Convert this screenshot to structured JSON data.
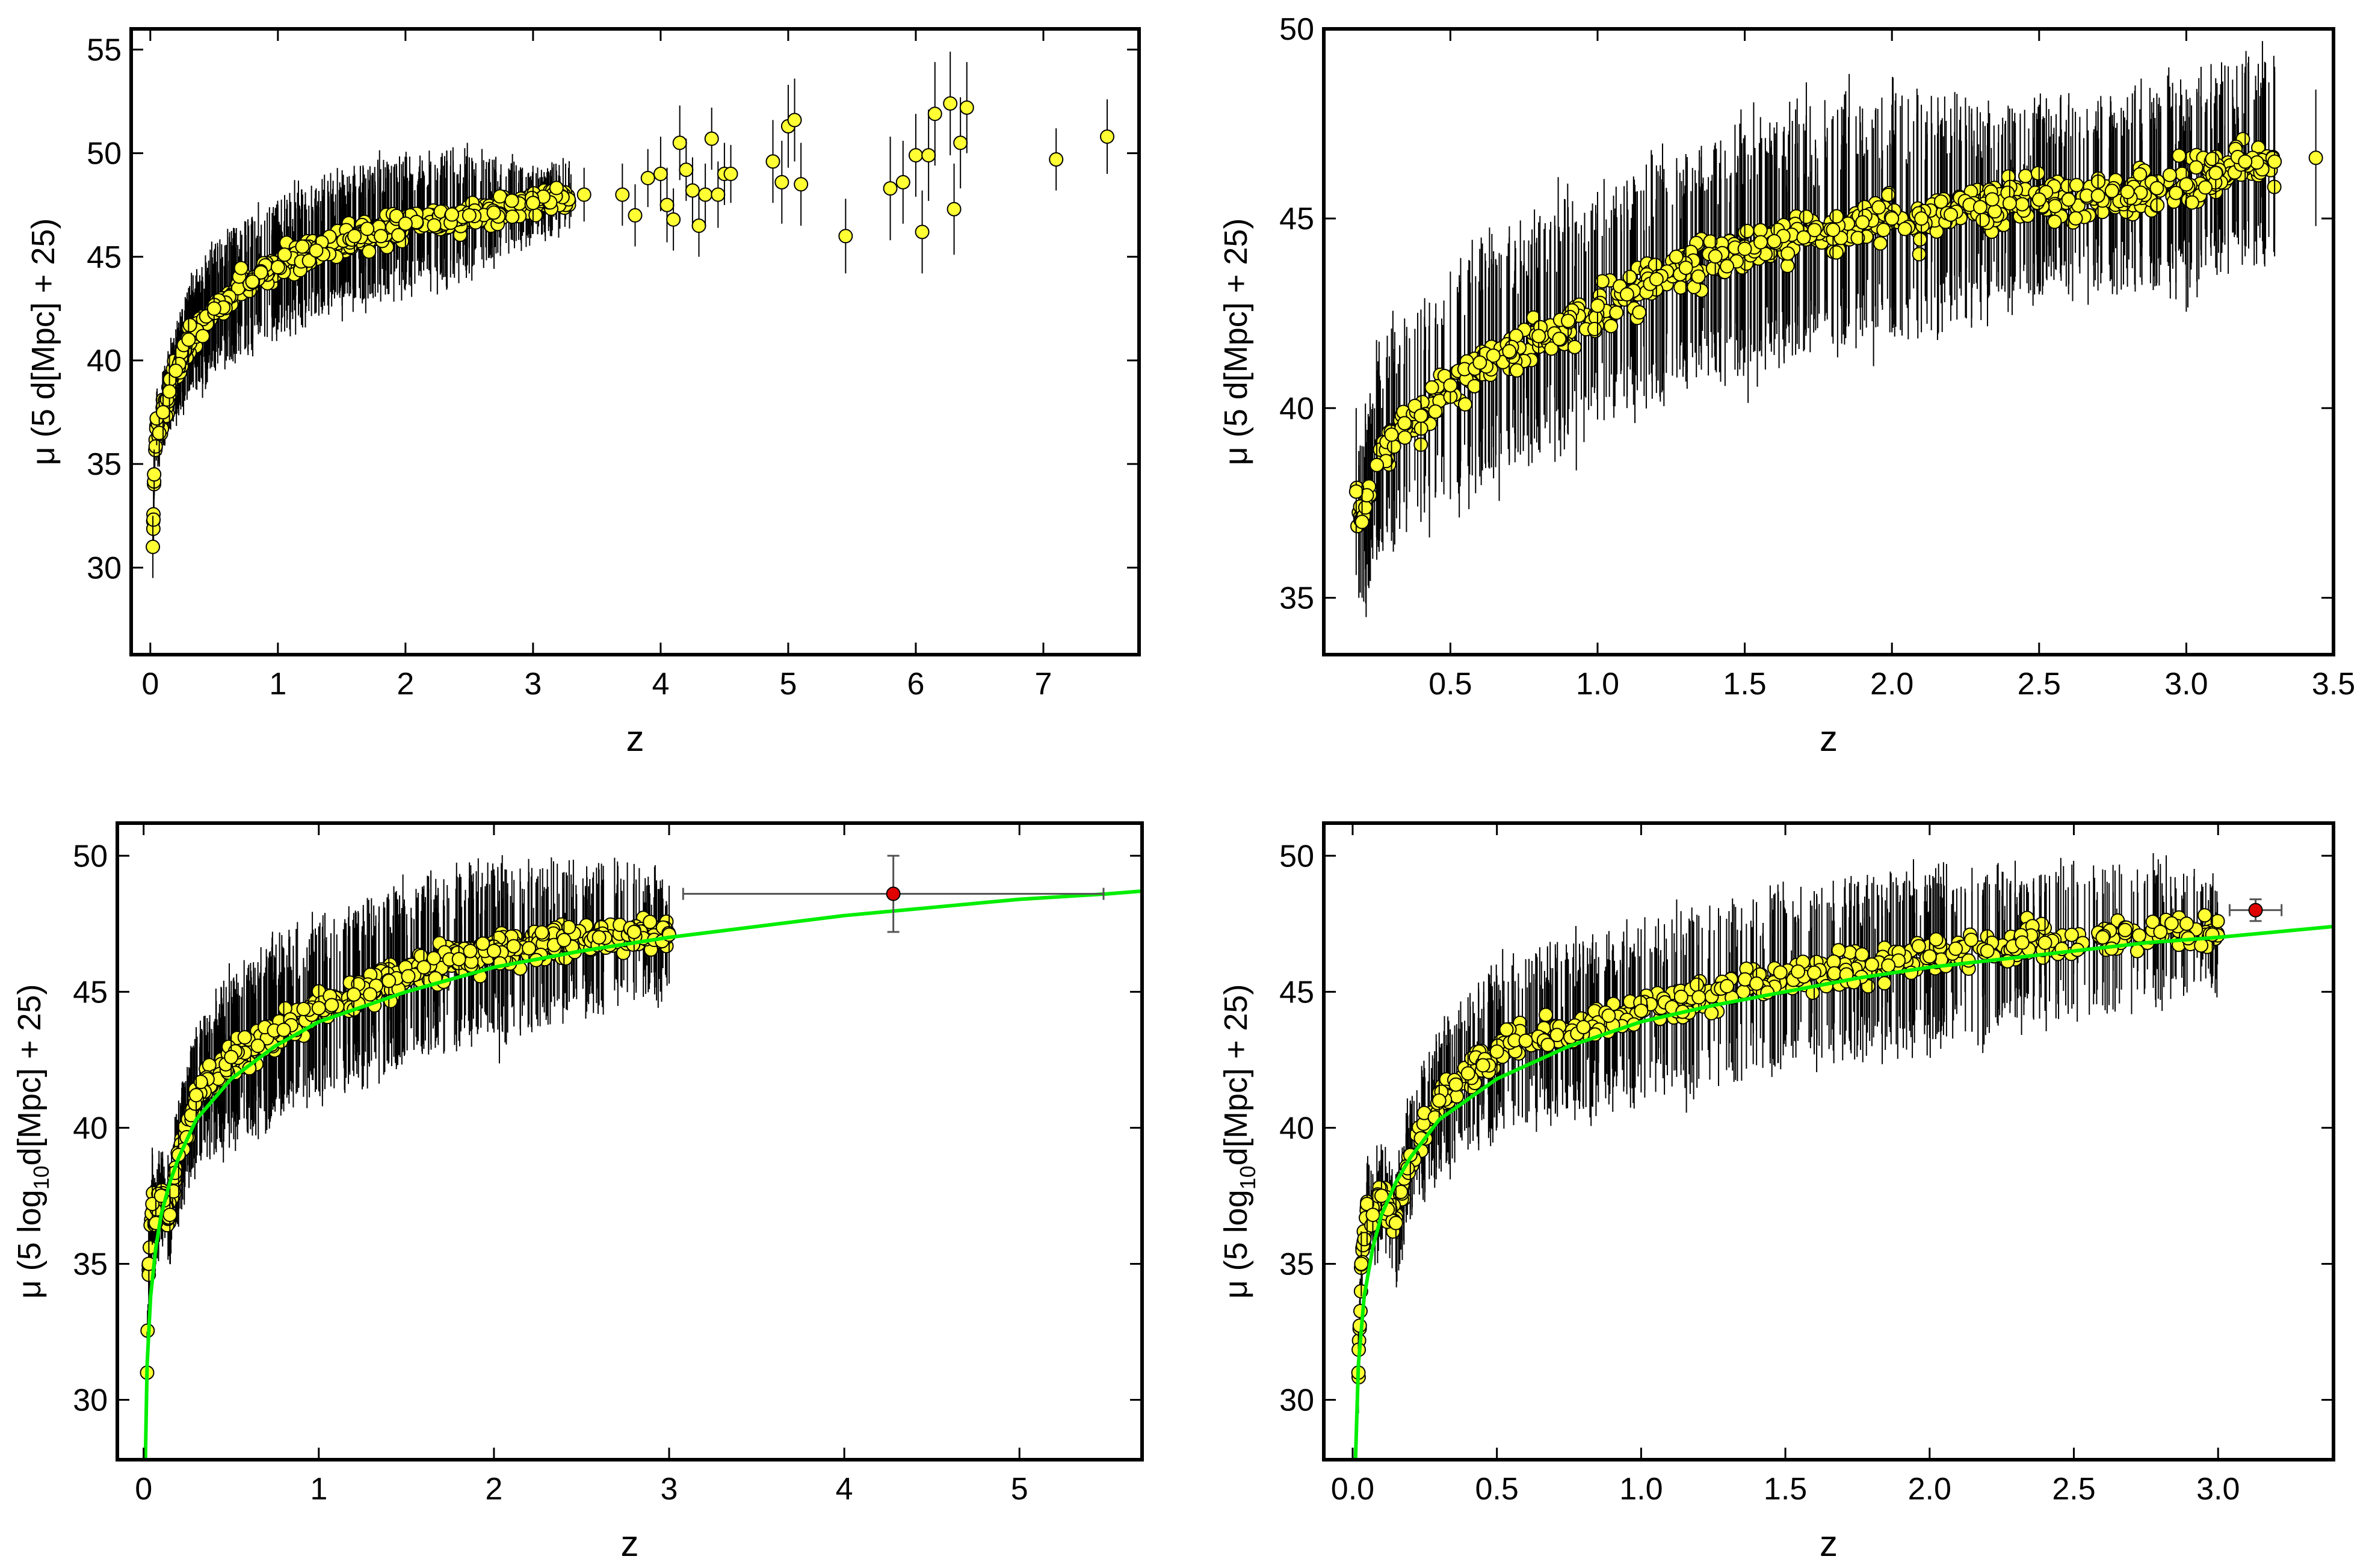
{
  "chart_data": [
    {
      "type": "scatter",
      "xlabel": "z",
      "ylabel": "μ (5 d[Mpc] + 25)",
      "xlim": [
        -0.15,
        7.75
      ],
      "ylim": [
        25.8,
        56.0
      ],
      "xticks": [
        0,
        1,
        2,
        3,
        4,
        5,
        6,
        7
      ],
      "yticks": [
        30,
        35,
        40,
        45,
        50,
        55
      ],
      "xtick_decimals": 0,
      "point_color": "#ffff33",
      "points": [
        [
          0.02,
          31.0,
          1.5
        ],
        [
          0.03,
          34.5,
          1.2
        ],
        [
          0.05,
          37.2,
          1.3
        ],
        [
          0.07,
          36.5,
          1.5
        ],
        [
          0.1,
          37.5,
          1.6
        ],
        [
          0.15,
          38.5,
          1.8
        ],
        [
          0.2,
          39.5,
          2.0
        ],
        [
          0.3,
          41.0,
          2.5
        ],
        [
          0.5,
          42.5,
          2.8
        ],
        [
          0.8,
          43.8,
          3.0
        ],
        [
          1.0,
          44.5,
          3.0
        ],
        [
          1.3,
          45.3,
          3.0
        ],
        [
          1.6,
          46.0,
          3.0
        ],
        [
          2.0,
          46.6,
          3.0
        ],
        [
          2.5,
          47.0,
          2.8
        ],
        [
          3.0,
          47.6,
          1.5
        ],
        [
          3.4,
          48.0,
          1.3
        ],
        [
          3.7,
          48.0,
          1.5
        ],
        [
          3.8,
          47.0,
          1.5
        ],
        [
          3.9,
          48.8,
          1.4
        ],
        [
          4.0,
          49.0,
          1.8
        ],
        [
          4.05,
          47.5,
          1.8
        ],
        [
          4.1,
          46.8,
          1.5
        ],
        [
          4.15,
          50.5,
          1.8
        ],
        [
          4.2,
          49.2,
          1.5
        ],
        [
          4.25,
          48.2,
          1.6
        ],
        [
          4.3,
          46.5,
          1.5
        ],
        [
          4.35,
          48.0,
          1.5
        ],
        [
          4.4,
          50.7,
          1.5
        ],
        [
          4.45,
          48.0,
          1.6
        ],
        [
          4.5,
          49.0,
          1.5
        ],
        [
          4.55,
          49.0,
          1.4
        ],
        [
          4.88,
          49.6,
          2.0
        ],
        [
          4.95,
          48.6,
          2.0
        ],
        [
          5.0,
          51.3,
          2.0
        ],
        [
          5.05,
          51.6,
          2.0
        ],
        [
          5.1,
          48.5,
          2.0
        ],
        [
          5.45,
          46.0,
          1.8
        ],
        [
          5.8,
          48.3,
          2.5
        ],
        [
          5.9,
          48.6,
          2.0
        ],
        [
          6.0,
          49.9,
          2.0
        ],
        [
          6.05,
          46.2,
          2.0
        ],
        [
          6.1,
          49.9,
          2.2
        ],
        [
          6.15,
          51.9,
          2.5
        ],
        [
          6.27,
          52.4,
          2.5
        ],
        [
          6.3,
          47.3,
          2.2
        ],
        [
          6.35,
          50.5,
          2.2
        ],
        [
          6.4,
          52.2,
          2.2
        ],
        [
          7.1,
          49.7,
          1.5
        ],
        [
          7.5,
          50.8,
          1.8
        ]
      ]
    },
    {
      "type": "scatter",
      "xlabel": "z",
      "ylabel": "μ (5 d[Mpc] + 25)",
      "xlim": [
        0.07,
        3.5
      ],
      "ylim": [
        33.5,
        50.0
      ],
      "xticks": [
        0.5,
        1.0,
        1.5,
        2.0,
        2.5,
        3.0,
        3.5
      ],
      "yticks": [
        35,
        40,
        45,
        50
      ],
      "xtick_decimals": 1,
      "point_color": "#ffff33",
      "points": [
        [
          0.18,
          37.8,
          2.2
        ],
        [
          0.2,
          37.0,
          2.0
        ],
        [
          0.25,
          38.5,
          2.5
        ],
        [
          0.3,
          39.3,
          2.8
        ],
        [
          0.4,
          39.8,
          2.8
        ],
        [
          0.5,
          40.6,
          3.0
        ],
        [
          0.6,
          41.2,
          3.0
        ],
        [
          0.7,
          41.5,
          3.0
        ],
        [
          0.8,
          41.9,
          3.0
        ],
        [
          0.9,
          42.3,
          3.0
        ],
        [
          1.0,
          42.7,
          3.0
        ],
        [
          1.1,
          43.0,
          3.0
        ],
        [
          1.2,
          43.4,
          3.0
        ],
        [
          1.3,
          43.7,
          3.0
        ],
        [
          1.4,
          44.0,
          3.0
        ],
        [
          1.5,
          44.2,
          3.0
        ],
        [
          1.6,
          44.4,
          3.0
        ],
        [
          1.7,
          44.5,
          3.0
        ],
        [
          1.8,
          44.7,
          3.0
        ],
        [
          1.9,
          44.9,
          3.0
        ],
        [
          2.0,
          45.0,
          3.0
        ],
        [
          2.1,
          45.0,
          3.0
        ],
        [
          2.2,
          45.1,
          2.8
        ],
        [
          2.3,
          45.3,
          2.5
        ],
        [
          2.4,
          45.4,
          2.5
        ],
        [
          2.5,
          45.5,
          2.5
        ],
        [
          2.6,
          45.5,
          2.5
        ],
        [
          2.7,
          45.6,
          2.5
        ],
        [
          2.8,
          45.7,
          2.5
        ],
        [
          2.9,
          45.8,
          2.5
        ],
        [
          3.0,
          45.9,
          2.5
        ],
        [
          3.1,
          46.2,
          2.5
        ],
        [
          3.2,
          46.5,
          2.5
        ],
        [
          3.3,
          46.5,
          2.5
        ],
        [
          3.44,
          46.6,
          1.8
        ]
      ]
    },
    {
      "type": "scatter",
      "xlabel": "z",
      "ylabel": "μ (5 log10d[Mpc] + 25)",
      "xlim": [
        -0.15,
        5.7
      ],
      "ylim": [
        27.8,
        51.2
      ],
      "xticks": [
        0,
        1,
        2,
        3,
        4,
        5
      ],
      "yticks": [
        30,
        35,
        40,
        45,
        50
      ],
      "xtick_decimals": 0,
      "point_color": "#ffff33",
      "fit_color": "#00ee00",
      "points": [
        [
          0.02,
          31.0,
          1.5
        ],
        [
          0.03,
          35.0,
          1.2
        ],
        [
          0.05,
          37.2,
          1.5
        ],
        [
          0.07,
          36.5,
          1.5
        ],
        [
          0.1,
          37.5,
          1.6
        ],
        [
          0.15,
          36.8,
          1.8
        ],
        [
          0.2,
          39.0,
          2.0
        ],
        [
          0.3,
          41.2,
          2.5
        ],
        [
          0.5,
          42.6,
          2.8
        ],
        [
          0.8,
          43.6,
          3.0
        ],
        [
          1.0,
          44.4,
          3.0
        ],
        [
          1.2,
          44.9,
          3.0
        ],
        [
          1.4,
          45.4,
          3.0
        ],
        [
          1.6,
          45.9,
          3.0
        ],
        [
          1.8,
          46.2,
          3.0
        ],
        [
          2.0,
          46.5,
          3.0
        ],
        [
          2.2,
          46.6,
          2.8
        ],
        [
          2.4,
          46.9,
          2.5
        ],
        [
          2.6,
          47.0,
          2.5
        ],
        [
          2.8,
          47.2,
          2.5
        ],
        [
          3.0,
          47.1,
          1.8
        ]
      ],
      "highlight": {
        "x": 4.28,
        "y": 48.6,
        "xerr_low": 1.2,
        "xerr_high": 1.2,
        "yerr": 1.4,
        "color": "#e00000"
      },
      "fit": {
        "x": [
          0.01,
          0.02,
          0.04,
          0.07,
          0.1,
          0.15,
          0.2,
          0.3,
          0.5,
          0.75,
          1.0,
          1.5,
          2.0,
          2.5,
          3.0,
          3.5,
          4.0,
          4.5,
          5.0,
          5.5,
          5.7
        ],
        "y": [
          27.8,
          31.3,
          33.8,
          35.6,
          36.8,
          38.0,
          38.9,
          40.3,
          41.8,
          43.0,
          43.9,
          45.0,
          45.9,
          46.5,
          47.0,
          47.4,
          47.8,
          48.1,
          48.4,
          48.6,
          48.7
        ]
      }
    },
    {
      "type": "scatter",
      "xlabel": "z",
      "ylabel": "μ (5 log10d[Mpc] + 25)",
      "xlim": [
        -0.1,
        3.4
      ],
      "ylim": [
        27.8,
        51.2
      ],
      "xticks": [
        0.0,
        0.5,
        1.0,
        1.5,
        2.0,
        2.5,
        3.0
      ],
      "yticks": [
        30,
        35,
        40,
        45,
        50
      ],
      "xtick_decimals": 1,
      "point_color": "#ffff33",
      "fit_color": "#00ee00",
      "points": [
        [
          0.02,
          31.0,
          1.5
        ],
        [
          0.03,
          35.0,
          1.2
        ],
        [
          0.05,
          37.2,
          1.5
        ],
        [
          0.07,
          36.8,
          1.5
        ],
        [
          0.1,
          37.5,
          1.6
        ],
        [
          0.15,
          36.5,
          1.8
        ],
        [
          0.2,
          39.0,
          2.0
        ],
        [
          0.3,
          41.0,
          2.5
        ],
        [
          0.4,
          42.0,
          2.8
        ],
        [
          0.5,
          42.8,
          2.8
        ],
        [
          0.6,
          43.2,
          3.0
        ],
        [
          0.8,
          43.7,
          3.0
        ],
        [
          1.0,
          44.3,
          3.0
        ],
        [
          1.2,
          44.8,
          3.0
        ],
        [
          1.4,
          45.3,
          3.0
        ],
        [
          1.6,
          45.7,
          3.0
        ],
        [
          1.8,
          46.0,
          3.0
        ],
        [
          2.0,
          46.3,
          3.0
        ],
        [
          2.2,
          46.5,
          2.8
        ],
        [
          2.4,
          46.8,
          2.5
        ],
        [
          2.6,
          47.0,
          2.5
        ],
        [
          2.8,
          47.2,
          2.5
        ],
        [
          2.98,
          47.1,
          1.8
        ]
      ],
      "highlight": {
        "x": 3.13,
        "y": 48.0,
        "xerr_low": 0.09,
        "xerr_high": 0.09,
        "yerr": 0.4,
        "color": "#e00000"
      },
      "fit": {
        "x": [
          0.01,
          0.02,
          0.04,
          0.07,
          0.1,
          0.15,
          0.2,
          0.3,
          0.5,
          0.75,
          1.0,
          1.25,
          1.5,
          1.75,
          2.0,
          2.25,
          2.5,
          2.75,
          3.0,
          3.2,
          3.4
        ],
        "y": [
          27.8,
          31.3,
          33.8,
          35.6,
          36.8,
          38.0,
          38.9,
          40.3,
          41.8,
          43.0,
          43.9,
          44.5,
          45.0,
          45.5,
          45.9,
          46.2,
          46.5,
          46.8,
          47.0,
          47.2,
          47.4
        ]
      }
    }
  ]
}
